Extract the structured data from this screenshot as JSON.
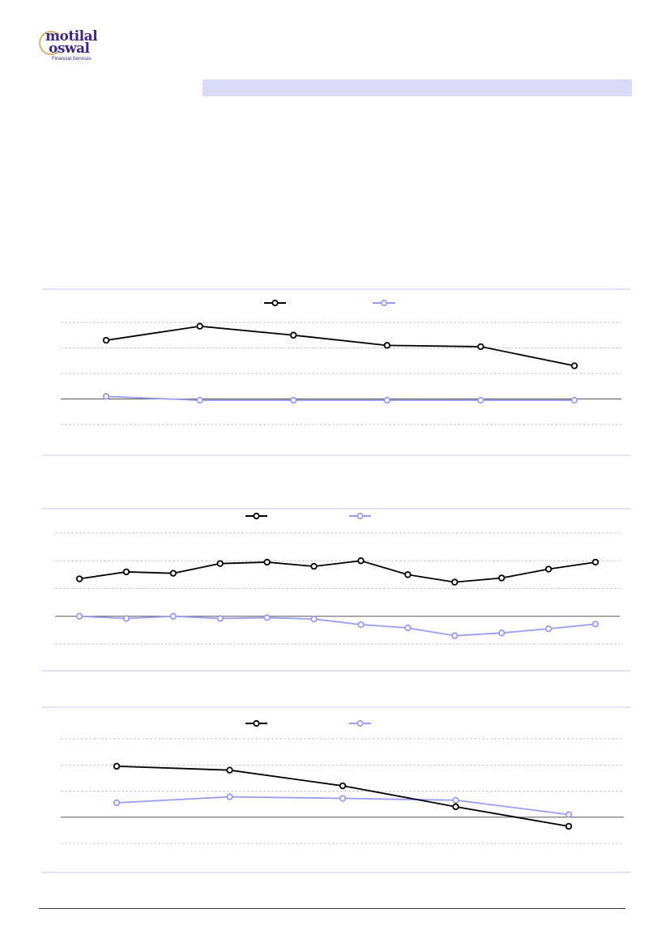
{
  "logo": {
    "line1": "motilal",
    "line2": "oswal",
    "subtitle": "Financial Services"
  },
  "colors": {
    "series_black": "#000000",
    "series_purple": "#9b9bf0",
    "header_bar": "#d9d9f8",
    "frame_line": "#c5c5ee",
    "grid": "#b5b5b5"
  },
  "chart_data": [
    {
      "type": "line",
      "grid": true,
      "legend": "top-center",
      "ylim": [
        -1,
        3
      ],
      "x": [
        1,
        2,
        3,
        4,
        5,
        6
      ],
      "series": [
        {
          "values": [
            2.3,
            2.85,
            2.5,
            2.1,
            2.05,
            1.3
          ]
        },
        {
          "values": [
            0.1,
            -0.05,
            -0.05,
            -0.05,
            -0.05,
            -0.05
          ]
        }
      ]
    },
    {
      "type": "line",
      "grid": true,
      "legend": "top-center",
      "ylim": [
        -1,
        3
      ],
      "x": [
        1,
        2,
        3,
        4,
        5,
        6,
        7,
        8,
        9,
        10,
        11,
        12
      ],
      "series": [
        {
          "values": [
            1.35,
            1.6,
            1.55,
            1.9,
            1.95,
            1.8,
            2.0,
            1.5,
            1.23,
            1.38,
            1.7,
            1.95
          ]
        },
        {
          "values": [
            0.0,
            -0.08,
            0.0,
            -0.08,
            -0.05,
            -0.1,
            -0.3,
            -0.42,
            -0.7,
            -0.6,
            -0.45,
            -0.28
          ]
        }
      ]
    },
    {
      "type": "line",
      "grid": true,
      "legend": "top-center",
      "ylim": [
        -1,
        3
      ],
      "x": [
        1,
        2,
        3,
        4,
        5
      ],
      "series": [
        {
          "values": [
            1.95,
            1.8,
            1.2,
            0.4,
            -0.35
          ]
        },
        {
          "values": [
            0.55,
            0.78,
            0.72,
            0.65,
            0.1
          ]
        }
      ]
    }
  ]
}
